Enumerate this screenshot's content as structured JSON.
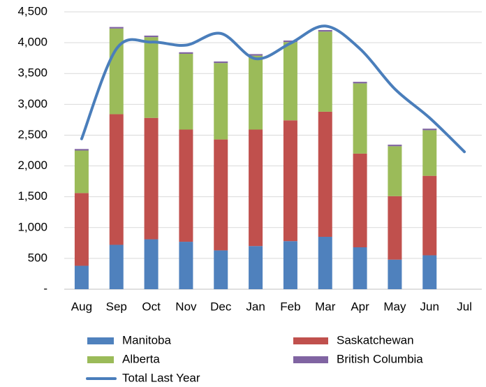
{
  "chart_data": {
    "type": "bar",
    "stacked": true,
    "categories": [
      "Aug",
      "Sep",
      "Oct",
      "Nov",
      "Dec",
      "Jan",
      "Feb",
      "Mar",
      "Apr",
      "May",
      "Jun",
      "Jul"
    ],
    "series": [
      {
        "name": "Manitoba",
        "color": "#4f81bd",
        "values": [
          380,
          720,
          810,
          770,
          630,
          700,
          780,
          850,
          680,
          480,
          550,
          null
        ]
      },
      {
        "name": "Saskatchewan",
        "color": "#c0504d",
        "values": [
          1180,
          2120,
          1970,
          1820,
          1800,
          1890,
          1960,
          2030,
          1520,
          1030,
          1290,
          null
        ]
      },
      {
        "name": "Alberta",
        "color": "#9bbb59",
        "values": [
          690,
          1390,
          1310,
          1230,
          1240,
          1200,
          1270,
          1300,
          1140,
          810,
          740,
          null
        ]
      },
      {
        "name": "British Columbia",
        "color": "#8064a2",
        "values": [
          25,
          25,
          25,
          25,
          25,
          25,
          25,
          25,
          25,
          25,
          25,
          null
        ]
      },
      {
        "name": "Total Last Year",
        "color": "#4a7ebb",
        "type": "line",
        "values": [
          2440,
          3900,
          4010,
          3960,
          4150,
          3740,
          3990,
          4270,
          3900,
          3250,
          2780,
          2230
        ]
      }
    ],
    "ylim": [
      0,
      4500
    ],
    "yticks": [
      {
        "value": 0,
        "label": "-"
      },
      500,
      {
        "value": 1000,
        "label": "1,000"
      },
      {
        "value": 1500,
        "label": "1,500"
      },
      {
        "value": 2000,
        "label": "2,000"
      },
      {
        "value": 2500,
        "label": "2,500"
      },
      {
        "value": 3000,
        "label": "3,000"
      },
      {
        "value": 3500,
        "label": "3,500"
      },
      {
        "value": 4000,
        "label": "4,000"
      },
      {
        "value": 4500,
        "label": "4,500"
      }
    ],
    "grid": true,
    "legend": "bottom"
  }
}
